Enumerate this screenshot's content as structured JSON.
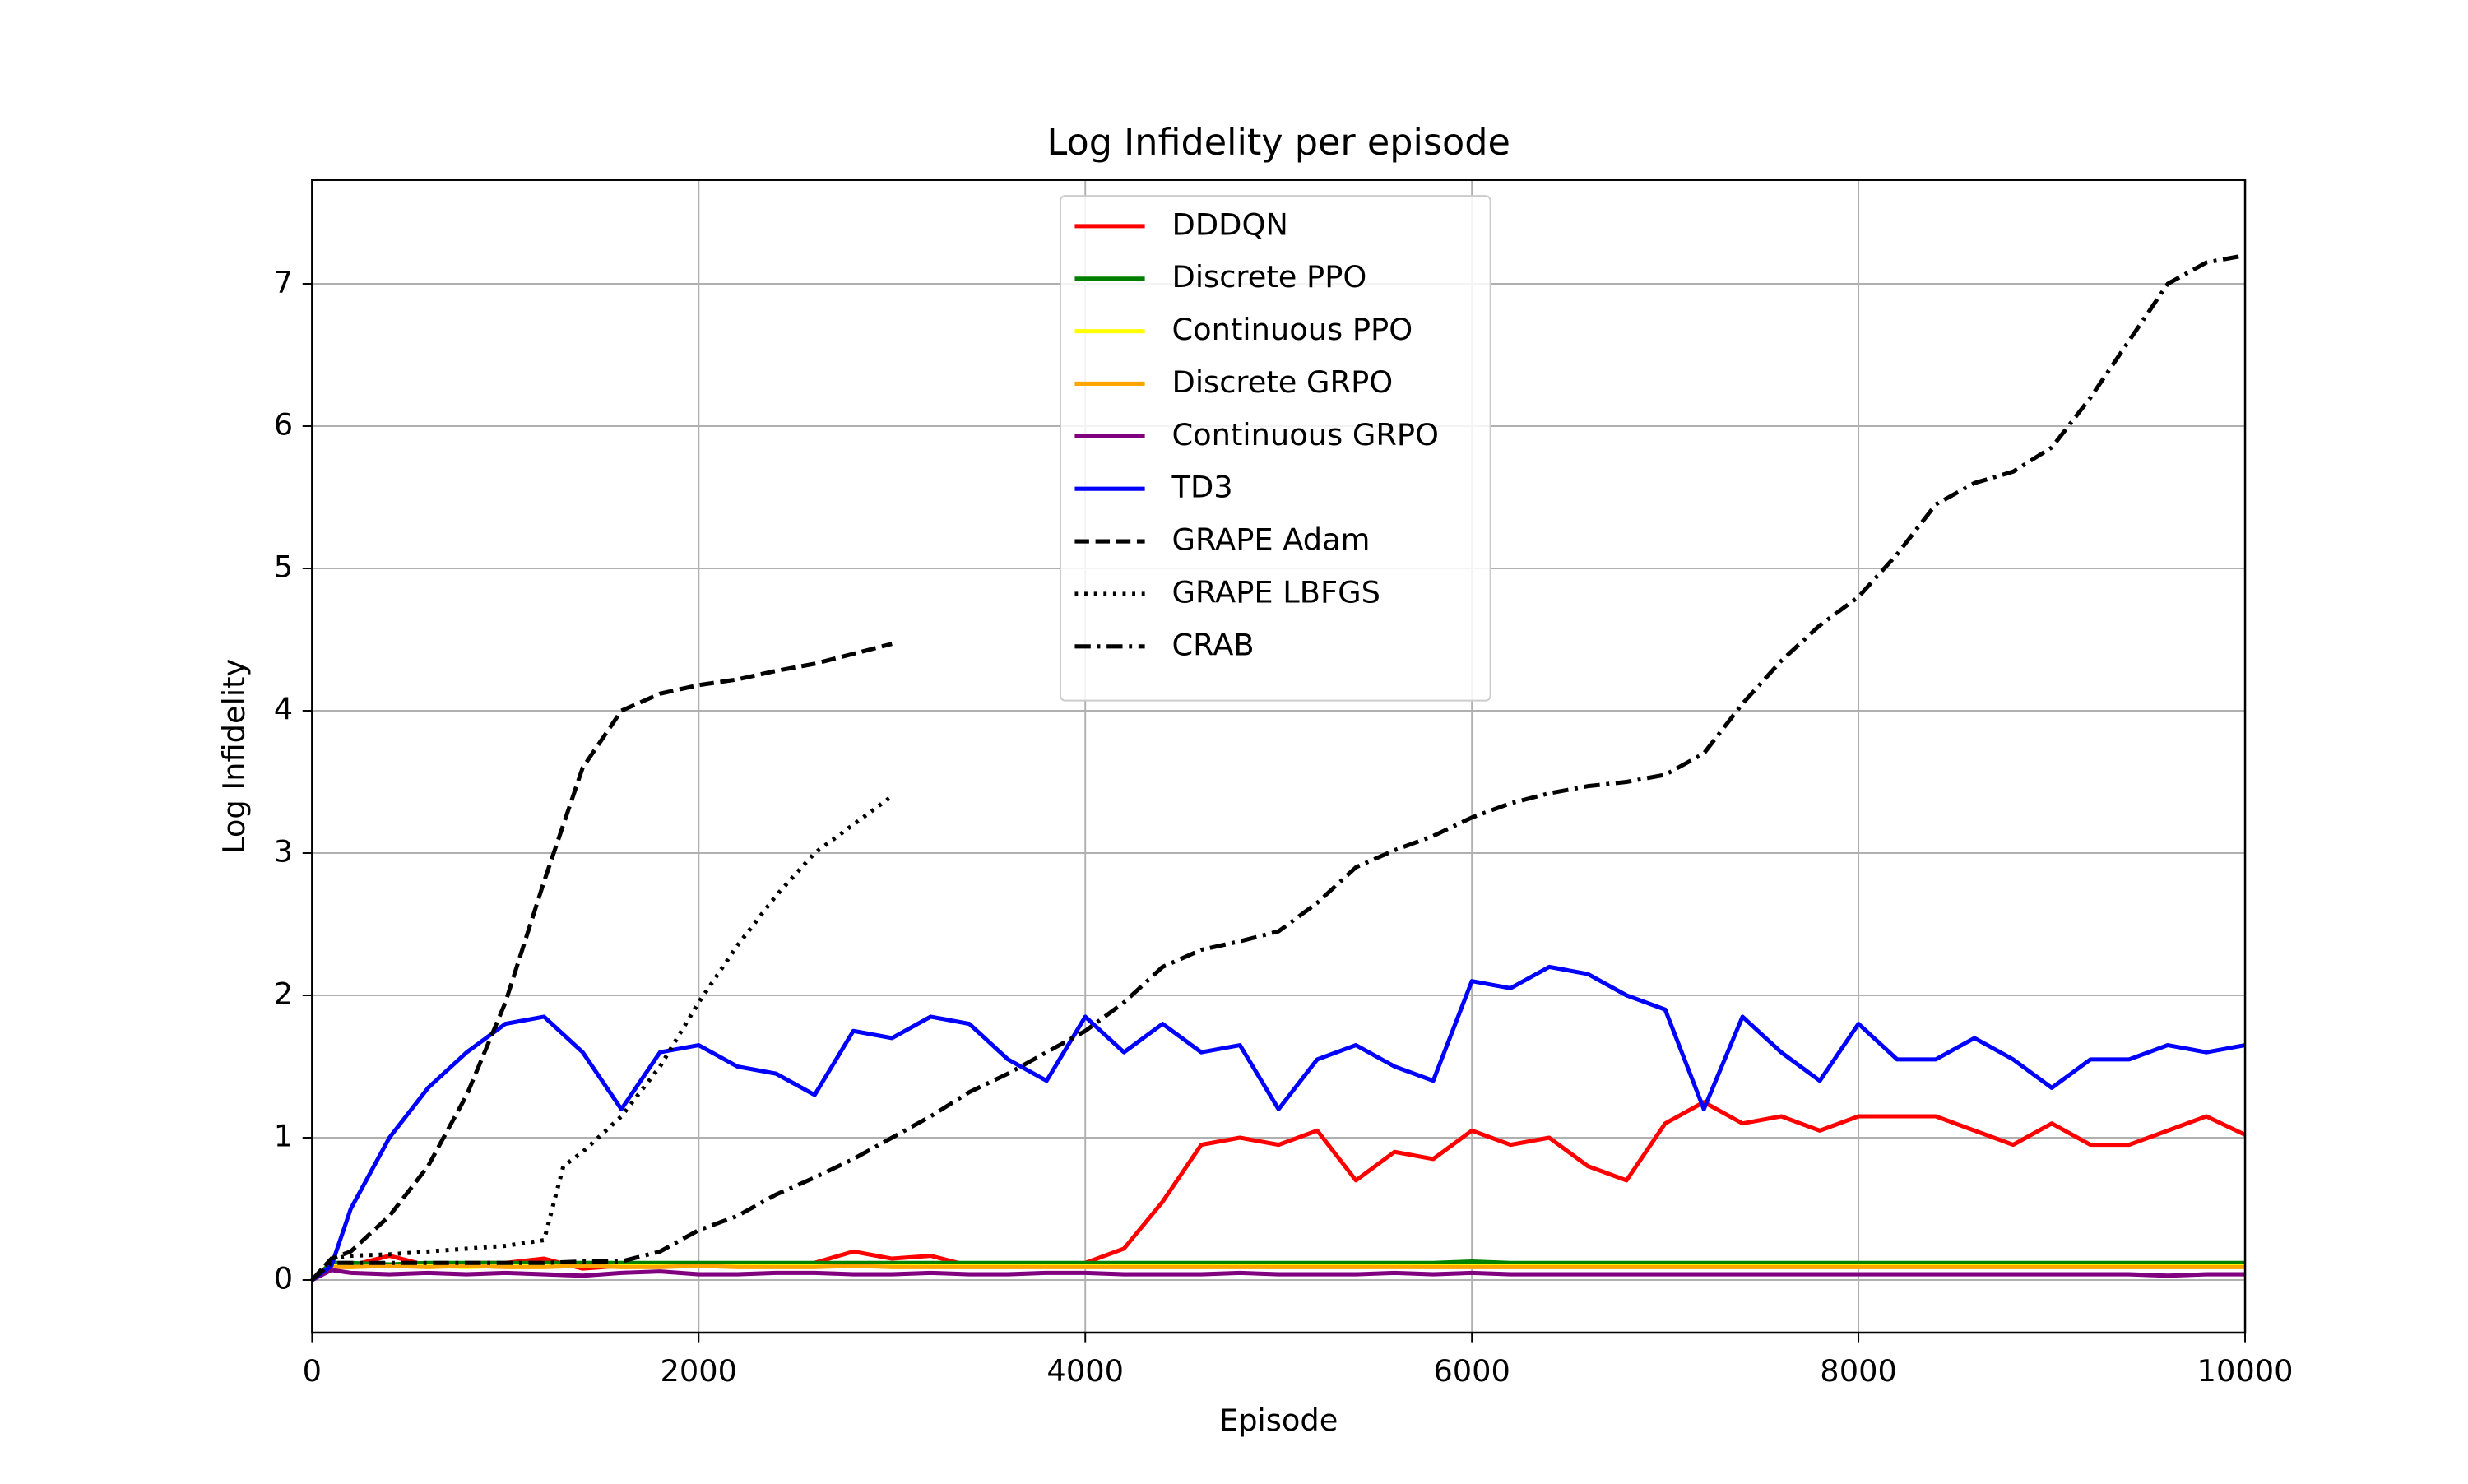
{
  "chart_data": {
    "type": "line",
    "title": "Log Infidelity per episode",
    "xlabel": "Episode",
    "ylabel": "Log Infidelity",
    "xlim": [
      0,
      10000
    ],
    "ylim": [
      -0.37,
      7.73
    ],
    "xticks": [
      0,
      2000,
      4000,
      6000,
      8000,
      10000
    ],
    "yticks": [
      0,
      1,
      2,
      3,
      4,
      5,
      6,
      7
    ],
    "grid": true,
    "legend": "upper center",
    "x": [
      0,
      100,
      200,
      400,
      600,
      800,
      1000,
      1200,
      1400,
      1600,
      1800,
      2000,
      2200,
      2400,
      2600,
      2800,
      3000,
      3200,
      3400,
      3600,
      3800,
      4000,
      4200,
      4400,
      4600,
      4800,
      5000,
      5200,
      5400,
      5600,
      5800,
      6000,
      6200,
      6400,
      6600,
      6800,
      7000,
      7200,
      7400,
      7600,
      7800,
      8000,
      8200,
      8400,
      8600,
      8800,
      9000,
      9200,
      9400,
      9600,
      9800,
      10000
    ],
    "series": [
      {
        "name": "DDDQN",
        "color": "#ff0000",
        "style": "solid",
        "values": [
          0,
          0.1,
          0.1,
          0.17,
          0.1,
          0.12,
          0.12,
          0.15,
          0.08,
          0.1,
          0.1,
          0.1,
          0.1,
          0.1,
          0.12,
          0.2,
          0.15,
          0.17,
          0.1,
          0.1,
          0.1,
          0.12,
          0.22,
          0.55,
          0.95,
          1.0,
          0.95,
          1.05,
          0.7,
          0.9,
          0.85,
          1.05,
          0.95,
          1.0,
          0.8,
          0.7,
          1.1,
          1.25,
          1.1,
          1.15,
          1.05,
          1.15,
          1.15,
          1.15,
          1.05,
          0.95,
          1.1,
          0.95,
          0.95,
          1.05,
          1.15,
          1.02
        ]
      },
      {
        "name": "Discrete PPO",
        "color": "#008000",
        "style": "solid",
        "values": [
          0,
          0.12,
          0.12,
          0.11,
          0.12,
          0.12,
          0.12,
          0.12,
          0.12,
          0.12,
          0.12,
          0.12,
          0.12,
          0.12,
          0.12,
          0.12,
          0.12,
          0.12,
          0.12,
          0.12,
          0.12,
          0.12,
          0.12,
          0.12,
          0.12,
          0.12,
          0.12,
          0.12,
          0.12,
          0.12,
          0.12,
          0.13,
          0.12,
          0.12,
          0.12,
          0.12,
          0.12,
          0.12,
          0.12,
          0.12,
          0.12,
          0.12,
          0.12,
          0.12,
          0.12,
          0.12,
          0.12,
          0.12,
          0.12,
          0.12,
          0.12,
          0.12
        ]
      },
      {
        "name": "Continuous PPO",
        "color": "#ffff00",
        "style": "solid",
        "values": [
          0,
          0.1,
          0.09,
          0.1,
          0.1,
          0.09,
          0.1,
          0.1,
          0.1,
          0.1,
          0.1,
          0.1,
          0.1,
          0.1,
          0.1,
          0.1,
          0.1,
          0.1,
          0.1,
          0.1,
          0.1,
          0.1,
          0.1,
          0.1,
          0.1,
          0.1,
          0.1,
          0.1,
          0.1,
          0.1,
          0.1,
          0.1,
          0.1,
          0.1,
          0.1,
          0.1,
          0.1,
          0.1,
          0.1,
          0.1,
          0.1,
          0.1,
          0.1,
          0.1,
          0.1,
          0.1,
          0.1,
          0.1,
          0.1,
          0.1,
          0.1,
          0.1
        ]
      },
      {
        "name": "Discrete GRPO",
        "color": "#ffa500",
        "style": "solid",
        "values": [
          0,
          0.09,
          0.09,
          0.1,
          0.09,
          0.1,
          0.09,
          0.09,
          0.1,
          0.09,
          0.09,
          0.1,
          0.09,
          0.09,
          0.09,
          0.1,
          0.09,
          0.09,
          0.09,
          0.09,
          0.09,
          0.09,
          0.09,
          0.09,
          0.09,
          0.09,
          0.09,
          0.09,
          0.09,
          0.09,
          0.09,
          0.09,
          0.09,
          0.09,
          0.09,
          0.09,
          0.09,
          0.09,
          0.09,
          0.09,
          0.09,
          0.09,
          0.09,
          0.09,
          0.09,
          0.09,
          0.09,
          0.09,
          0.09,
          0.09,
          0.09,
          0.09
        ]
      },
      {
        "name": "Continuous GRPO",
        "color": "#800080",
        "style": "solid",
        "values": [
          0,
          0.07,
          0.05,
          0.04,
          0.05,
          0.04,
          0.05,
          0.04,
          0.03,
          0.05,
          0.06,
          0.04,
          0.04,
          0.05,
          0.05,
          0.04,
          0.04,
          0.05,
          0.04,
          0.04,
          0.05,
          0.05,
          0.04,
          0.04,
          0.04,
          0.05,
          0.04,
          0.04,
          0.04,
          0.05,
          0.04,
          0.05,
          0.04,
          0.04,
          0.04,
          0.04,
          0.04,
          0.04,
          0.04,
          0.04,
          0.04,
          0.04,
          0.04,
          0.04,
          0.04,
          0.04,
          0.04,
          0.04,
          0.04,
          0.03,
          0.04,
          0.04
        ]
      },
      {
        "name": "TD3",
        "color": "#0000ff",
        "style": "solid",
        "values": [
          0,
          0.1,
          0.5,
          1.0,
          1.35,
          1.6,
          1.8,
          1.85,
          1.6,
          1.2,
          1.6,
          1.65,
          1.5,
          1.45,
          1.3,
          1.75,
          1.7,
          1.85,
          1.8,
          1.55,
          1.4,
          1.85,
          1.6,
          1.8,
          1.6,
          1.65,
          1.2,
          1.55,
          1.65,
          1.5,
          1.4,
          2.1,
          2.05,
          2.2,
          2.15,
          2.0,
          1.9,
          1.2,
          1.85,
          1.6,
          1.4,
          1.8,
          1.55,
          1.55,
          1.7,
          1.55,
          1.35,
          1.55,
          1.55,
          1.65,
          1.6,
          1.65
        ]
      },
      {
        "name": "GRAPE Adam",
        "color": "#000000",
        "style": "dashed",
        "x": [
          0,
          100,
          200,
          400,
          600,
          800,
          1000,
          1200,
          1400,
          1600,
          1800,
          2000,
          2200,
          2400,
          2600,
          2800,
          3000
        ],
        "values": [
          0,
          0.15,
          0.2,
          0.45,
          0.8,
          1.3,
          1.95,
          2.8,
          3.6,
          4.0,
          4.12,
          4.18,
          4.22,
          4.28,
          4.33,
          4.4,
          4.47
        ]
      },
      {
        "name": "GRAPE LBFGS",
        "color": "#000000",
        "style": "dotted",
        "x": [
          0,
          100,
          200,
          400,
          600,
          800,
          1000,
          1200,
          1300,
          1400,
          1600,
          1800,
          2000,
          2200,
          2400,
          2600,
          2800,
          3000
        ],
        "values": [
          0,
          0.15,
          0.17,
          0.18,
          0.2,
          0.22,
          0.24,
          0.28,
          0.8,
          0.9,
          1.15,
          1.5,
          1.95,
          2.35,
          2.7,
          3.0,
          3.2,
          3.4
        ]
      },
      {
        "name": "CRAB",
        "color": "#000000",
        "style": "dashdot",
        "values": [
          0,
          0.12,
          0.12,
          0.12,
          0.12,
          0.12,
          0.12,
          0.12,
          0.13,
          0.13,
          0.2,
          0.35,
          0.45,
          0.6,
          0.72,
          0.85,
          1.0,
          1.15,
          1.32,
          1.45,
          1.6,
          1.75,
          1.95,
          2.2,
          2.32,
          2.38,
          2.45,
          2.65,
          2.9,
          3.02,
          3.12,
          3.25,
          3.35,
          3.42,
          3.47,
          3.5,
          3.55,
          3.7,
          4.05,
          4.35,
          4.6,
          4.8,
          5.1,
          5.45,
          5.6,
          5.68,
          5.85,
          6.2,
          6.6,
          7.0,
          7.15,
          7.2
        ]
      }
    ]
  }
}
